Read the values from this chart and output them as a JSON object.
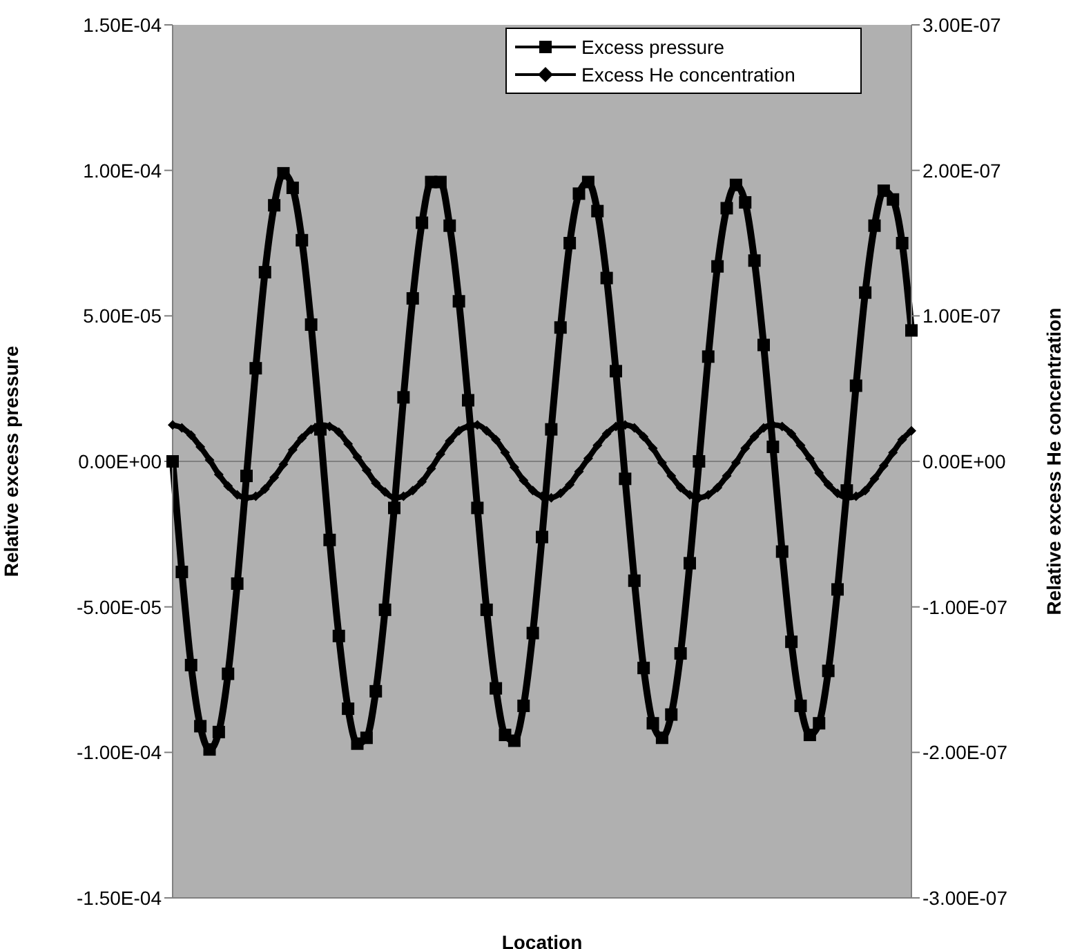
{
  "chart_data": {
    "type": "line",
    "xlabel": "Location",
    "ylabel": "Relative excess pressure",
    "y2label": "Relative excess He concentration",
    "categories": [
      null,
      null,
      null,
      null,
      null,
      null,
      null,
      null,
      null,
      null,
      null,
      null,
      null,
      null,
      null,
      null,
      null,
      null,
      null,
      null,
      null,
      null,
      null,
      null,
      null,
      null,
      null,
      null,
      null,
      null,
      null,
      null,
      null,
      null,
      null,
      null,
      null,
      null,
      null,
      null,
      null,
      null,
      null,
      null,
      null,
      null,
      null,
      null,
      null,
      null,
      null,
      null,
      null,
      null,
      null,
      null,
      null,
      null,
      null,
      null,
      null,
      null,
      null,
      null,
      null,
      null,
      null,
      null,
      null,
      null,
      null,
      null,
      null,
      null,
      null,
      null,
      null,
      null,
      null,
      null,
      null
    ],
    "series": [
      {
        "name": "Excess pressure",
        "color": "#000000",
        "axis": "y",
        "marker": "square",
        "values": [
          0,
          -3.8e-05,
          -7e-05,
          -9.1e-05,
          -9.9e-05,
          -9.3e-05,
          -7.3e-05,
          -4.2e-05,
          -5e-06,
          3.2e-05,
          6.5e-05,
          8.8e-05,
          9.9e-05,
          9.4e-05,
          7.6e-05,
          4.7e-05,
          1.1e-05,
          -2.7e-05,
          -6e-05,
          -8.5e-05,
          -9.7e-05,
          -9.5e-05,
          -7.9e-05,
          -5.1e-05,
          -1.6e-05,
          2.2e-05,
          5.6e-05,
          8.2e-05,
          9.6e-05,
          9.6e-05,
          8.1e-05,
          5.5e-05,
          2.1e-05,
          -1.6e-05,
          -5.1e-05,
          -7.8e-05,
          -9.4e-05,
          -9.6e-05,
          -8.4e-05,
          -5.9e-05,
          -2.6e-05,
          1.1e-05,
          4.6e-05,
          7.5e-05,
          9.2e-05,
          9.6e-05,
          8.6e-05,
          6.3e-05,
          3.1e-05,
          -6e-06,
          -4.1e-05,
          -7.1e-05,
          -9e-05,
          -9.5e-05,
          -8.7e-05,
          -6.6e-05,
          -3.5e-05,
          0,
          3.6e-05,
          6.7e-05,
          8.7e-05,
          9.5e-05,
          8.9e-05,
          6.9e-05,
          4e-05,
          5e-06,
          -3.1e-05,
          -6.2e-05,
          -8.4e-05,
          -9.4e-05,
          -9e-05,
          -7.2e-05,
          -4.4e-05,
          -1e-05,
          2.6e-05,
          5.8e-05,
          8.1e-05,
          9.3e-05,
          9e-05,
          7.5e-05,
          4.5e-05
        ]
      },
      {
        "name": "Excess He concentration",
        "color": "#000000",
        "axis": "y2",
        "marker": "diamond",
        "values": [
          2.5e-08,
          2.3e-08,
          1.8e-08,
          1e-08,
          1e-09,
          -9e-09,
          -1.7e-08,
          -2.3e-08,
          -2.5e-08,
          -2.4e-08,
          -1.9e-08,
          -1.1e-08,
          -2e-09,
          8e-09,
          1.6e-08,
          2.2e-08,
          2.5e-08,
          2.4e-08,
          2e-08,
          1.2e-08,
          3e-09,
          -6e-09,
          -1.5e-08,
          -2.1e-08,
          -2.5e-08,
          -2.4e-08,
          -2e-08,
          -1.4e-08,
          -5e-09,
          5e-09,
          1.4e-08,
          2.1e-08,
          2.4e-08,
          2.5e-08,
          2.1e-08,
          1.5e-08,
          6e-09,
          -4e-09,
          -1.3e-08,
          -2e-08,
          -2.4e-08,
          -2.5e-08,
          -2.2e-08,
          -1.6e-08,
          -7e-09,
          2e-09,
          1.1e-08,
          1.9e-08,
          2.4e-08,
          2.5e-08,
          2.3e-08,
          1.7e-08,
          9e-09,
          -1e-09,
          -1e-08,
          -1.8e-08,
          -2.3e-08,
          -2.5e-08,
          -2.3e-08,
          -1.8e-08,
          -1e-08,
          -1e-09,
          9e-09,
          1.7e-08,
          2.3e-08,
          2.5e-08,
          2.4e-08,
          1.9e-08,
          1.1e-08,
          2e-09,
          -8e-09,
          -1.6e-08,
          -2.2e-08,
          -2.5e-08,
          -2.4e-08,
          -2e-08,
          -1.2e-08,
          -3e-09,
          6e-09,
          1.5e-08,
          2.1e-08
        ]
      }
    ],
    "ylim": [
      -0.00015,
      0.00015
    ],
    "yticks": [
      {
        "value": -0.00015,
        "label": "-1.50E-04"
      },
      {
        "value": -0.0001,
        "label": "-1.00E-04"
      },
      {
        "value": -5e-05,
        "label": "-5.00E-05"
      },
      {
        "value": 0,
        "label": "0.00E+00"
      },
      {
        "value": 5e-05,
        "label": "5.00E-05"
      },
      {
        "value": 0.0001,
        "label": "1.00E-04"
      },
      {
        "value": 0.00015,
        "label": "1.50E-04"
      }
    ],
    "y2lim": [
      -3e-07,
      3e-07
    ],
    "y2ticks": [
      {
        "value": -3e-07,
        "label": "-3.00E-07"
      },
      {
        "value": -2e-07,
        "label": "-2.00E-07"
      },
      {
        "value": -1e-07,
        "label": "-1.00E-07"
      },
      {
        "value": 0,
        "label": "0.00E+00"
      },
      {
        "value": 1e-07,
        "label": "1.00E-07"
      },
      {
        "value": 2e-07,
        "label": "2.00E-07"
      },
      {
        "value": 3e-07,
        "label": "3.00E-07"
      }
    ],
    "ref_lines": [
      {
        "axis": "y",
        "value": 0,
        "color": "#808080"
      }
    ],
    "grid": false,
    "legend": "top right",
    "line_style": "solid"
  }
}
